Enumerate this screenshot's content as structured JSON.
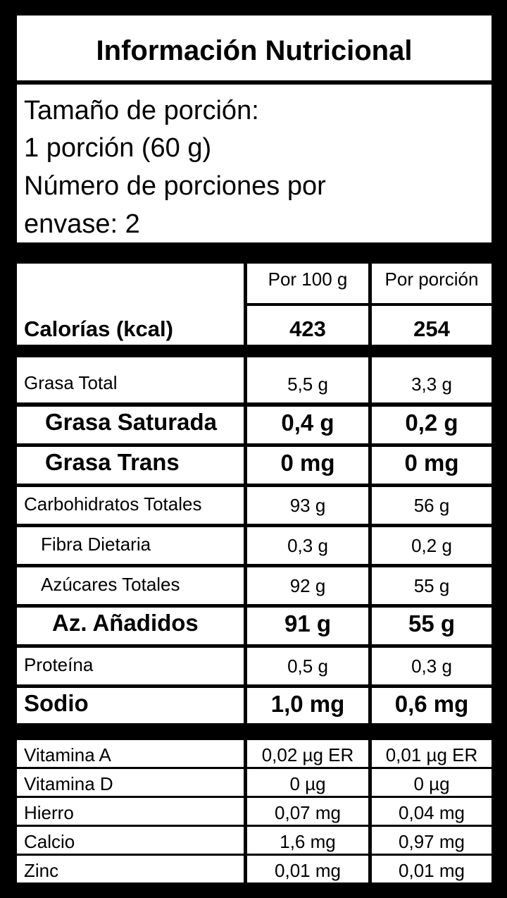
{
  "title": "Información Nutricional",
  "serving": {
    "line1": "Tamaño de porción:",
    "line2": "1 porción (60 g)",
    "line3": "Número de porciones por",
    "line4": "envase: 2"
  },
  "columns": {
    "per100": "Por 100 g",
    "perPortion": "Por porción"
  },
  "calories": {
    "label": "Calorías (kcal)",
    "per100": "423",
    "perPortion": "254"
  },
  "nutrients": [
    {
      "label": "Grasa Total",
      "per100": "5,5 g",
      "perPortion": "3,3 g"
    },
    {
      "label": "Grasa Saturada",
      "per100": "0,4 g",
      "perPortion": "0,2 g"
    },
    {
      "label": "Grasa Trans",
      "per100": "0 mg",
      "perPortion": "0 mg"
    },
    {
      "label": "Carbohidratos Totales",
      "per100": "93 g",
      "perPortion": "56 g"
    },
    {
      "label": "Fibra Dietaria",
      "per100": "0,3 g",
      "perPortion": "0,2 g"
    },
    {
      "label": "Azúcares Totales",
      "per100": "92 g",
      "perPortion": "55 g"
    },
    {
      "label": "Az. Añadidos",
      "per100": "91 g",
      "perPortion": "55 g"
    },
    {
      "label": "Proteína",
      "per100": "0,5 g",
      "perPortion": "0,3 g"
    },
    {
      "label": "Sodio",
      "per100": "1,0 mg",
      "perPortion": "0,6 mg"
    }
  ],
  "vitamins": [
    {
      "label": "Vitamina A",
      "per100": "0,02 µg ER",
      "perPortion": "0,01 µg ER"
    },
    {
      "label": "Vitamina D",
      "per100": "0 µg",
      "perPortion": "0 µg"
    },
    {
      "label": "Hierro",
      "per100": "0,07 mg",
      "perPortion": "0,04 mg"
    },
    {
      "label": "Calcio",
      "per100": "1,6 mg",
      "perPortion": "0,97 mg"
    },
    {
      "label": "Zinc",
      "per100": "0,01 mg",
      "perPortion": "0,01 mg"
    }
  ]
}
